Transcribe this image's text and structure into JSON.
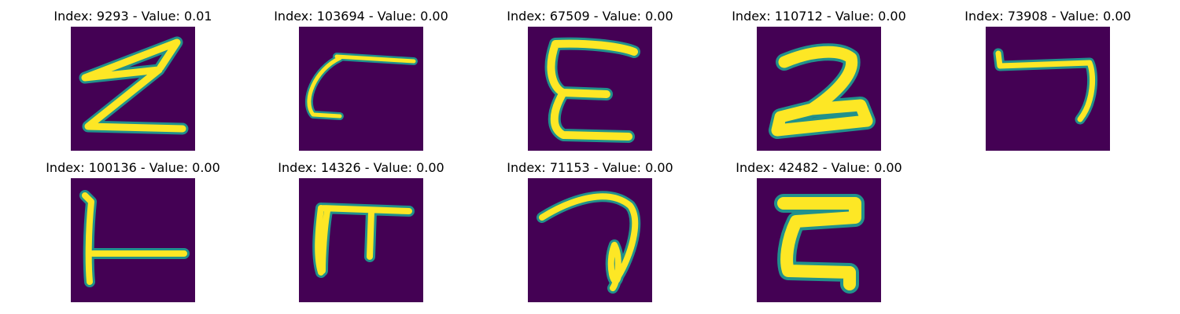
{
  "colors": {
    "background": "#440154",
    "stroke_core": "#fde725",
    "stroke_edge": "#21918c"
  },
  "panels": [
    {
      "title": "Index: 9293 - Value: 0.01"
    },
    {
      "title": "Index: 103694 - Value: 0.00"
    },
    {
      "title": "Index: 67509 - Value: 0.00"
    },
    {
      "title": "Index: 110712 - Value: 0.00"
    },
    {
      "title": "Index: 73908 - Value: 0.00"
    },
    {
      "title": "Index: 100136 - Value: 0.00"
    },
    {
      "title": "Index: 14326 - Value: 0.00"
    },
    {
      "title": "Index: 71153 - Value: 0.00"
    },
    {
      "title": "Index: 42482 - Value: 0.00"
    }
  ]
}
